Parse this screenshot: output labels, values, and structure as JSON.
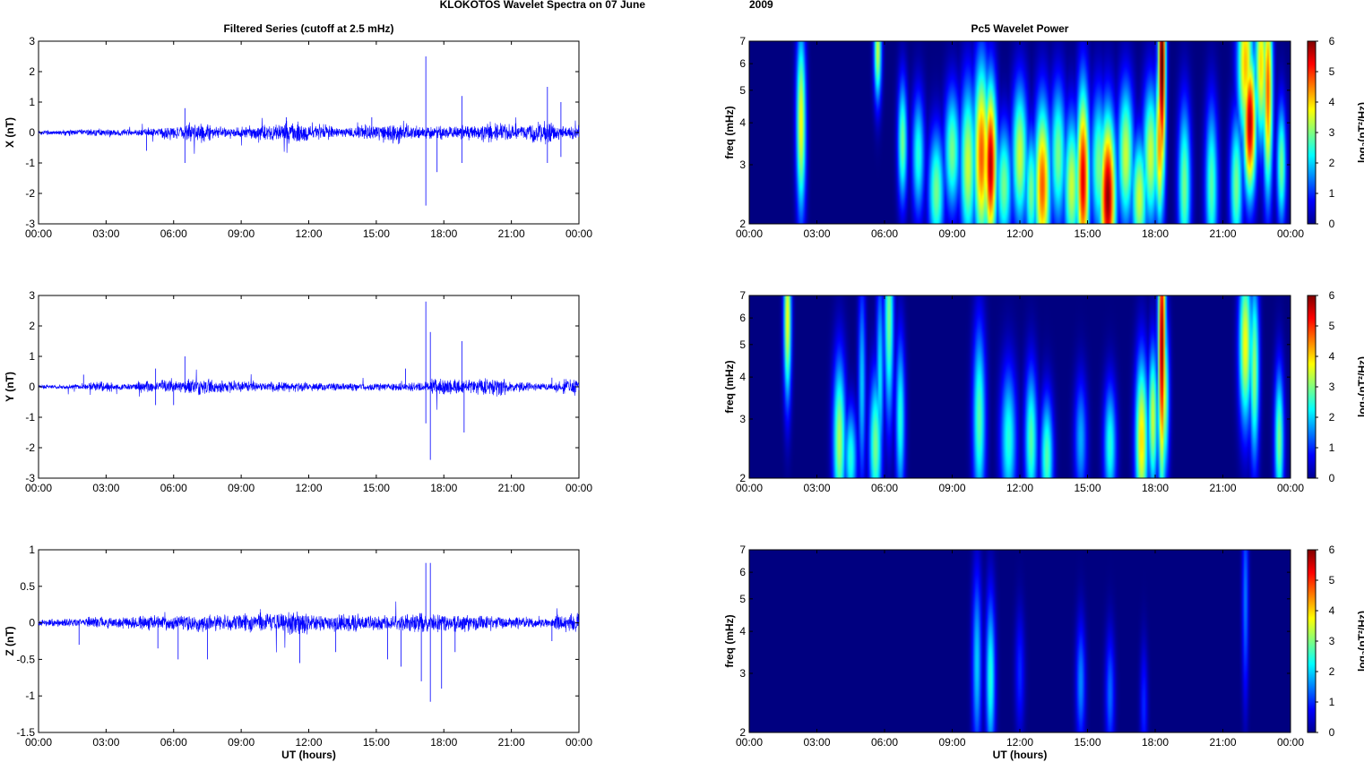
{
  "title_left": "KLOKOTOS Wavelet Spectra on 07 June",
  "title_right": "2009",
  "colors": {
    "trace": "#0000ff",
    "background": "#00008f"
  },
  "chart_data": [
    {
      "type": "line",
      "title": "Filtered Series (cutoff at 2.5 mHz)",
      "ylabel": "X (nT)",
      "xlabel": "",
      "xticks": [
        "00:00",
        "03:00",
        "06:00",
        "09:00",
        "12:00",
        "15:00",
        "18:00",
        "21:00",
        "00:00"
      ],
      "ylim": [
        -3,
        3
      ],
      "yticks": [
        "-3",
        "-2",
        "-1",
        "0",
        "1",
        "2",
        "3"
      ],
      "background_amplitude": [
        0.08,
        0.1,
        0.12,
        0.1,
        0.14,
        0.2,
        0.3,
        0.18,
        0.2,
        0.25,
        0.35,
        0.25,
        0.15,
        0.25,
        0.35,
        0.22,
        0.2,
        0.22,
        0.3,
        0.25,
        0.4,
        0.22
      ],
      "spikes": [
        [
          6.5,
          0.8
        ],
        [
          6.5,
          -1.0
        ],
        [
          17.2,
          2.5
        ],
        [
          17.2,
          -2.4
        ],
        [
          17.7,
          -1.3
        ],
        [
          18.8,
          1.2
        ],
        [
          18.8,
          -1.0
        ],
        [
          22.6,
          1.5
        ],
        [
          22.6,
          -1.0
        ],
        [
          23.2,
          1.0
        ],
        [
          23.2,
          -0.8
        ],
        [
          4.8,
          -0.6
        ],
        [
          11,
          0.5
        ],
        [
          14.8,
          0.5
        ]
      ]
    },
    {
      "type": "line",
      "title": "",
      "ylabel": "Y (nT)",
      "xlabel": "",
      "xticks": [
        "00:00",
        "03:00",
        "06:00",
        "09:00",
        "12:00",
        "15:00",
        "18:00",
        "21:00",
        "00:00"
      ],
      "ylim": [
        -3,
        3
      ],
      "yticks": [
        "-3",
        "-2",
        "-1",
        "0",
        "1",
        "2",
        "3"
      ],
      "background_amplitude": [
        0.06,
        0.08,
        0.15,
        0.1,
        0.18,
        0.2,
        0.25,
        0.2,
        0.15,
        0.15,
        0.15,
        0.12,
        0.12,
        0.12,
        0.12,
        0.15,
        0.25,
        0.22,
        0.3,
        0.15,
        0.12,
        0.25
      ],
      "spikes": [
        [
          2,
          0.4
        ],
        [
          5.2,
          -0.6
        ],
        [
          5.2,
          0.6
        ],
        [
          6.5,
          1.0
        ],
        [
          6.0,
          -0.6
        ],
        [
          16.3,
          0.6
        ],
        [
          17.2,
          2.8
        ],
        [
          17.2,
          -1.2
        ],
        [
          17.4,
          -2.4
        ],
        [
          17.4,
          1.8
        ],
        [
          18.8,
          1.5
        ],
        [
          18.9,
          -1.5
        ],
        [
          22.8,
          0.3
        ]
      ]
    },
    {
      "type": "line",
      "title": "",
      "ylabel": "Z (nT)",
      "xlabel": "UT (hours)",
      "xticks": [
        "00:00",
        "03:00",
        "06:00",
        "09:00",
        "12:00",
        "15:00",
        "18:00",
        "21:00",
        "00:00"
      ],
      "ylim": [
        -1.5,
        1
      ],
      "yticks": [
        "-1.5",
        "-1",
        "-0.5",
        "0",
        "0.5",
        "1"
      ],
      "background_amplitude": [
        0.05,
        0.06,
        0.08,
        0.08,
        0.1,
        0.1,
        0.12,
        0.1,
        0.12,
        0.12,
        0.15,
        0.1,
        0.12,
        0.1,
        0.1,
        0.12,
        0.12,
        0.1,
        0.1,
        0.08,
        0.06,
        0.12
      ],
      "spikes": [
        [
          1.8,
          -0.3
        ],
        [
          5.3,
          -0.35
        ],
        [
          6.2,
          -0.5
        ],
        [
          7.5,
          -0.5
        ],
        [
          11.6,
          -0.55
        ],
        [
          13.2,
          -0.4
        ],
        [
          15.5,
          -0.5
        ],
        [
          16.1,
          -0.6
        ],
        [
          17.0,
          -0.8
        ],
        [
          17.2,
          0.82
        ],
        [
          17.4,
          0.82
        ],
        [
          17.4,
          -1.08
        ],
        [
          17.9,
          -0.9
        ],
        [
          18.5,
          -0.4
        ],
        [
          22.8,
          -0.25
        ]
      ]
    },
    {
      "type": "heatmap",
      "title": "Pc5 Wavelet Power",
      "ylabel": "freq (mHz)",
      "xlabel": "",
      "xticks": [
        "00:00",
        "03:00",
        "06:00",
        "09:00",
        "12:00",
        "15:00",
        "18:00",
        "21:00",
        "00:00"
      ],
      "yticks": [
        "2",
        "3",
        "4",
        "5",
        "6",
        "7"
      ],
      "ylim": [
        2,
        7
      ],
      "yscale": "log",
      "colorbar": {
        "ticks": [
          "0",
          "1",
          "2",
          "3",
          "4",
          "5",
          "6"
        ],
        "label": "log₂(nT²/Hz)",
        "range": [
          0,
          6
        ]
      },
      "blobs": [
        [
          2.3,
          4.0,
          0.15,
          0.45,
          3.8
        ],
        [
          5.7,
          6.6,
          0.12,
          0.25,
          3.5
        ],
        [
          6.8,
          3.5,
          0.15,
          0.3,
          3.0
        ],
        [
          7.5,
          3.2,
          0.2,
          0.3,
          2.5
        ],
        [
          8.3,
          2.5,
          0.25,
          0.3,
          3.0
        ],
        [
          9.0,
          3.3,
          0.25,
          0.3,
          3.0
        ],
        [
          9.7,
          3.0,
          0.25,
          0.4,
          3.5
        ],
        [
          10.3,
          3.2,
          0.25,
          0.45,
          4.8
        ],
        [
          10.7,
          3.0,
          0.2,
          0.4,
          5.8
        ],
        [
          11.3,
          2.6,
          0.25,
          0.3,
          3.0
        ],
        [
          12.0,
          3.2,
          0.25,
          0.35,
          3.5
        ],
        [
          12.5,
          2.5,
          0.2,
          0.3,
          3.0
        ],
        [
          13.0,
          2.6,
          0.25,
          0.4,
          4.8
        ],
        [
          13.7,
          3.2,
          0.25,
          0.35,
          3.0
        ],
        [
          14.3,
          2.6,
          0.25,
          0.35,
          3.5
        ],
        [
          14.8,
          2.7,
          0.2,
          0.45,
          5.5
        ],
        [
          15.5,
          3.0,
          0.25,
          0.35,
          3.0
        ],
        [
          15.9,
          2.4,
          0.25,
          0.4,
          6.0
        ],
        [
          16.7,
          3.2,
          0.25,
          0.35,
          3.5
        ],
        [
          17.3,
          2.4,
          0.25,
          0.3,
          3.5
        ],
        [
          17.8,
          3.2,
          0.25,
          0.35,
          3.5
        ],
        [
          18.3,
          6.0,
          0.12,
          0.6,
          6.5
        ],
        [
          18.2,
          3.5,
          0.15,
          0.4,
          4.5
        ],
        [
          19.3,
          2.6,
          0.2,
          0.4,
          3.0
        ],
        [
          20.5,
          2.6,
          0.2,
          0.4,
          2.8
        ],
        [
          21.6,
          2.6,
          0.2,
          0.35,
          3.0
        ],
        [
          22.0,
          6.0,
          0.25,
          0.4,
          4.2
        ],
        [
          22.2,
          4.0,
          0.2,
          0.35,
          5.8
        ],
        [
          22.7,
          6.0,
          0.2,
          0.4,
          4.0
        ],
        [
          23.0,
          5.0,
          0.15,
          0.5,
          4.8
        ],
        [
          23.6,
          3.0,
          0.15,
          0.3,
          3.0
        ]
      ]
    },
    {
      "type": "heatmap",
      "title": "",
      "ylabel": "freq (mHz)",
      "xlabel": "",
      "xticks": [
        "00:00",
        "03:00",
        "06:00",
        "09:00",
        "12:00",
        "15:00",
        "18:00",
        "21:00",
        "00:00"
      ],
      "yticks": [
        "2",
        "3",
        "4",
        "5",
        "6",
        "7"
      ],
      "ylim": [
        2,
        7
      ],
      "yscale": "log",
      "colorbar": {
        "ticks": [
          "0",
          "1",
          "2",
          "3",
          "4",
          "5",
          "6"
        ],
        "label": "log₂(nT²/Hz)",
        "range": [
          0,
          6
        ]
      },
      "blobs": [
        [
          1.7,
          6.0,
          0.12,
          0.4,
          3.8
        ],
        [
          4.0,
          2.6,
          0.2,
          0.4,
          3.3
        ],
        [
          4.5,
          2.3,
          0.2,
          0.25,
          2.5
        ],
        [
          5.0,
          3.8,
          0.12,
          0.5,
          2.0
        ],
        [
          5.6,
          2.5,
          0.2,
          0.35,
          3.0
        ],
        [
          5.8,
          4.0,
          0.12,
          0.5,
          2.2
        ],
        [
          6.2,
          6.0,
          0.15,
          0.5,
          3.0
        ],
        [
          6.7,
          3.0,
          0.15,
          0.4,
          2.5
        ],
        [
          10.2,
          3.0,
          0.2,
          0.45,
          2.8
        ],
        [
          11.5,
          2.6,
          0.25,
          0.35,
          2.5
        ],
        [
          12.5,
          2.6,
          0.2,
          0.35,
          2.8
        ],
        [
          13.2,
          2.3,
          0.2,
          0.3,
          2.8
        ],
        [
          14.7,
          2.6,
          0.2,
          0.3,
          1.8
        ],
        [
          16.0,
          2.5,
          0.2,
          0.3,
          2.5
        ],
        [
          17.4,
          2.6,
          0.2,
          0.4,
          4.0
        ],
        [
          17.9,
          3.0,
          0.15,
          0.35,
          3.5
        ],
        [
          18.3,
          5.0,
          0.12,
          0.7,
          6.0
        ],
        [
          18.4,
          3.5,
          0.15,
          0.4,
          3.5
        ],
        [
          22.0,
          5.0,
          0.2,
          0.4,
          3.8
        ],
        [
          22.4,
          4.2,
          0.15,
          0.45,
          3.2
        ],
        [
          23.5,
          2.6,
          0.15,
          0.35,
          3.0
        ]
      ]
    },
    {
      "type": "heatmap",
      "title": "",
      "ylabel": "freq (mHz)",
      "xlabel": "UT (hours)",
      "xticks": [
        "00:00",
        "03:00",
        "06:00",
        "09:00",
        "12:00",
        "15:00",
        "18:00",
        "21:00",
        "00:00"
      ],
      "yticks": [
        "2",
        "3",
        "4",
        "5",
        "6",
        "7"
      ],
      "ylim": [
        2,
        7
      ],
      "yscale": "log",
      "colorbar": {
        "ticks": [
          "0",
          "1",
          "2",
          "3",
          "4",
          "5",
          "6"
        ],
        "label": "log₂(nT²/Hz)",
        "range": [
          0,
          6
        ]
      },
      "blobs": [
        [
          10.1,
          3.2,
          0.15,
          0.45,
          2.0
        ],
        [
          10.7,
          2.9,
          0.15,
          0.4,
          2.5
        ],
        [
          12.0,
          3.0,
          0.15,
          0.3,
          1.0
        ],
        [
          14.7,
          2.8,
          0.15,
          0.3,
          1.6
        ],
        [
          16.0,
          2.6,
          0.15,
          0.3,
          1.4
        ],
        [
          17.5,
          2.4,
          0.12,
          0.3,
          1.0
        ],
        [
          22.0,
          5.0,
          0.1,
          0.5,
          1.5
        ]
      ]
    }
  ]
}
